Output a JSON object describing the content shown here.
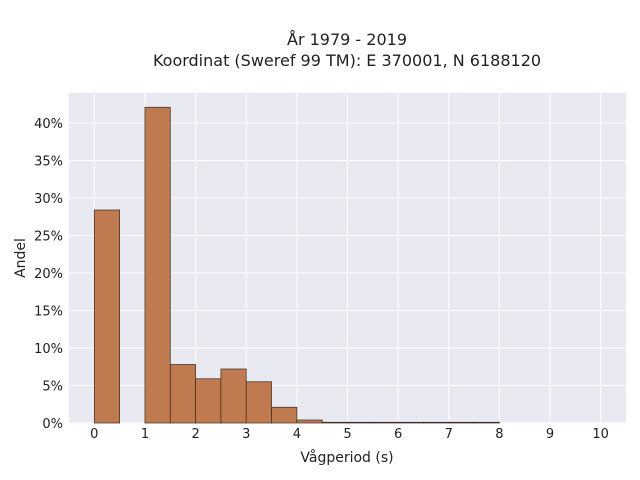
{
  "chart_data": {
    "type": "bar",
    "title": [
      "År 1979 - 2019",
      "Koordinat (Sweref 99 TM): E 370001, N 6188120"
    ],
    "xlabel": "Vågperiod (s)",
    "ylabel": "Andel",
    "xlim": [
      -0.5,
      10.5
    ],
    "ylim": [
      0,
      0.44
    ],
    "x_ticks": [
      0,
      1,
      2,
      3,
      4,
      5,
      6,
      7,
      8,
      9,
      10
    ],
    "y_ticks": [
      0,
      0.05,
      0.1,
      0.15,
      0.2,
      0.25,
      0.3,
      0.35,
      0.4
    ],
    "y_tick_labels": [
      "0%",
      "5%",
      "10%",
      "15%",
      "20%",
      "25%",
      "30%",
      "35%",
      "40%"
    ],
    "bin_width": 0.5,
    "bins": [
      {
        "start": 0.0,
        "value": 0.284
      },
      {
        "start": 0.5,
        "value": 0.0
      },
      {
        "start": 1.0,
        "value": 0.421
      },
      {
        "start": 1.5,
        "value": 0.078
      },
      {
        "start": 2.0,
        "value": 0.059
      },
      {
        "start": 2.5,
        "value": 0.072
      },
      {
        "start": 3.0,
        "value": 0.055
      },
      {
        "start": 3.5,
        "value": 0.021
      },
      {
        "start": 4.0,
        "value": 0.004
      },
      {
        "start": 4.5,
        "value": 0.001
      },
      {
        "start": 5.0,
        "value": 0.001
      },
      {
        "start": 5.5,
        "value": 0.001
      },
      {
        "start": 6.0,
        "value": 0.001
      },
      {
        "start": 6.5,
        "value": 0.001
      },
      {
        "start": 7.0,
        "value": 0.001
      },
      {
        "start": 7.5,
        "value": 0.001
      }
    ],
    "grid": true,
    "colors": {
      "bar_fill": "#c07a50",
      "bar_edge": "#3a2a1f",
      "plot_background": "#e9e9f1",
      "grid": "#ffffff"
    }
  }
}
